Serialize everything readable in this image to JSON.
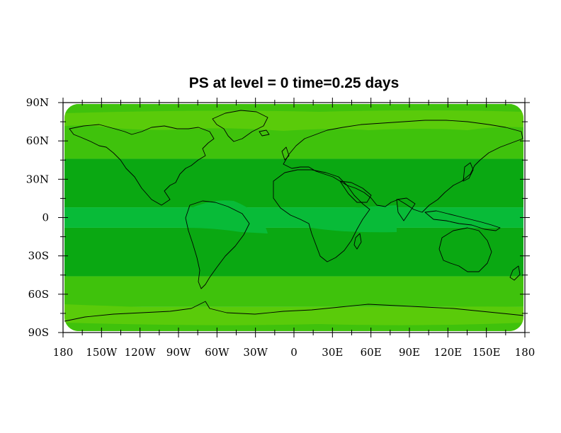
{
  "title": "PS at level = 0 time=0.25 days",
  "map": {
    "projection": "cylindrical-equidistant",
    "lon_range": [
      -180,
      180
    ],
    "lat_range": [
      -90,
      90
    ],
    "fill_colors": {
      "outer_band": "#5acb0a",
      "subpolar_band": "#3fc20c",
      "mid_band": "#0aa812",
      "equatorial_band": "#08bb38"
    },
    "bands": [
      {
        "name": "north-polar",
        "lat_top": 90,
        "lat_bottom": 73,
        "color_key": "outer_band"
      },
      {
        "name": "north-subpolar",
        "lat_top": 73,
        "lat_bottom": 46,
        "color_key": "subpolar_band"
      },
      {
        "name": "north-mid",
        "lat_top": 46,
        "lat_bottom": 8,
        "color_key": "mid_band"
      },
      {
        "name": "equatorial",
        "lat_top": 8,
        "lat_bottom": -8,
        "color_key": "equatorial_band"
      },
      {
        "name": "south-mid",
        "lat_top": -8,
        "lat_bottom": -46,
        "color_key": "mid_band"
      },
      {
        "name": "south-subpolar",
        "lat_top": -46,
        "lat_bottom": -70,
        "color_key": "subpolar_band"
      },
      {
        "name": "south-polar",
        "lat_top": -70,
        "lat_bottom": -90,
        "color_key": "outer_band"
      }
    ],
    "coastline_color": "#000000"
  },
  "axes": {
    "y_ticks": [
      {
        "value": 90,
        "label": "90N"
      },
      {
        "value": 60,
        "label": "60N"
      },
      {
        "value": 30,
        "label": "30N"
      },
      {
        "value": 0,
        "label": "0"
      },
      {
        "value": -30,
        "label": "30S"
      },
      {
        "value": -60,
        "label": "60S"
      },
      {
        "value": -90,
        "label": "90S"
      }
    ],
    "x_ticks": [
      {
        "value": -180,
        "label": "180"
      },
      {
        "value": -150,
        "label": "150W"
      },
      {
        "value": -120,
        "label": "120W"
      },
      {
        "value": -90,
        "label": "90W"
      },
      {
        "value": -60,
        "label": "60W"
      },
      {
        "value": -30,
        "label": "30W"
      },
      {
        "value": 0,
        "label": "0"
      },
      {
        "value": 30,
        "label": "30E"
      },
      {
        "value": 60,
        "label": "60E"
      },
      {
        "value": 90,
        "label": "90E"
      },
      {
        "value": 120,
        "label": "120E"
      },
      {
        "value": 150,
        "label": "150E"
      },
      {
        "value": 180,
        "label": "180"
      }
    ]
  }
}
